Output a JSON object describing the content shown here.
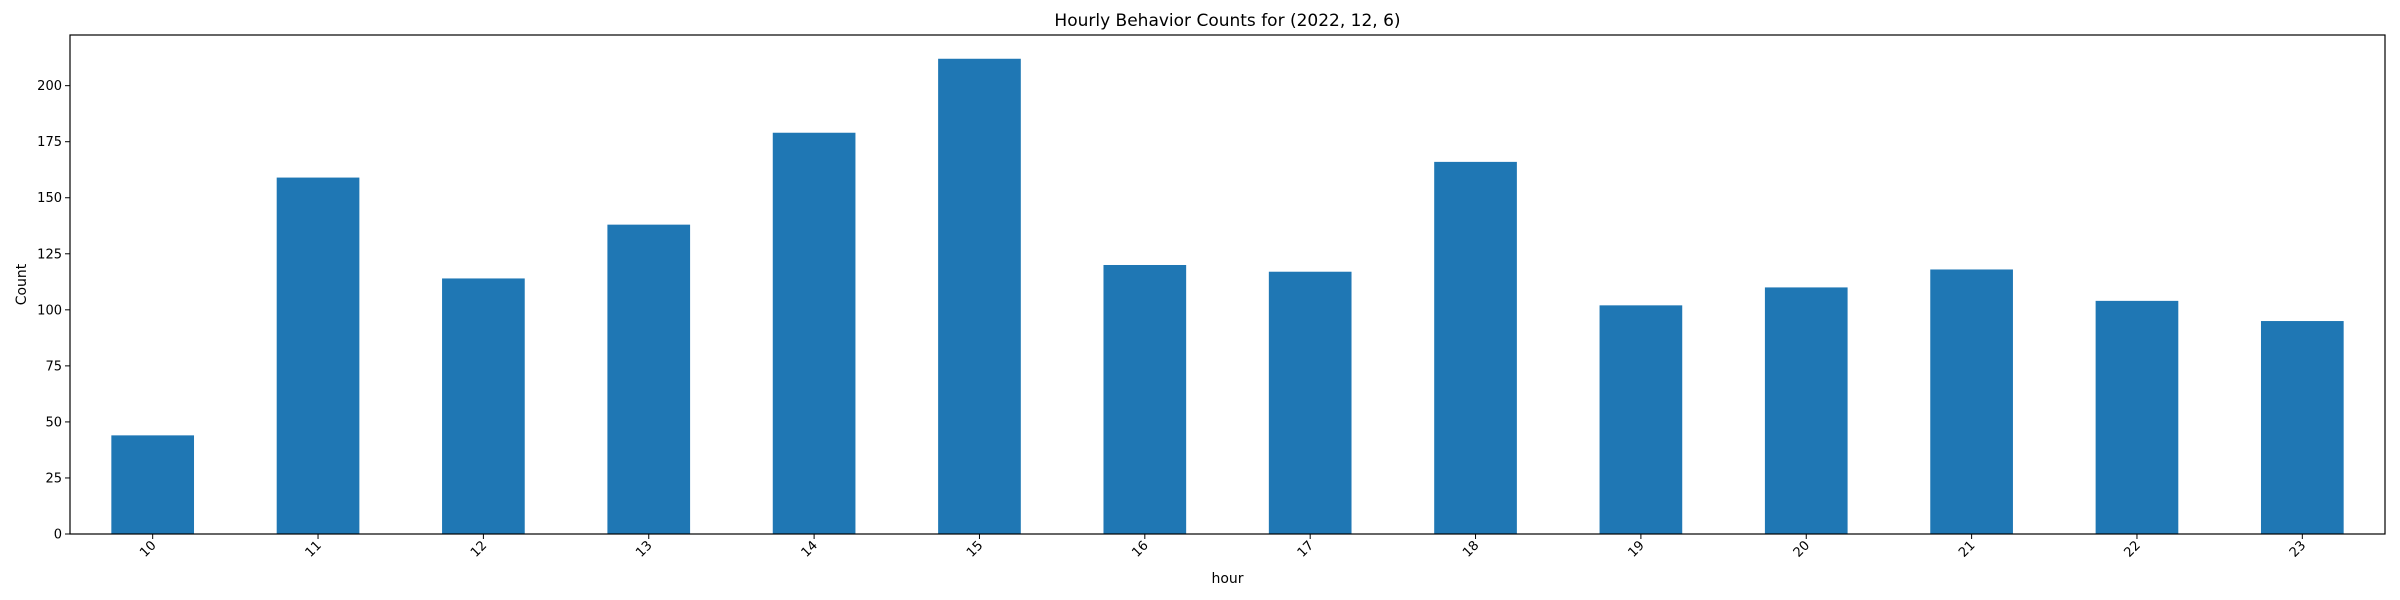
{
  "chart_data": {
    "type": "bar",
    "title": "Hourly Behavior Counts for (2022, 12, 6)",
    "xlabel": "hour",
    "ylabel": "Count",
    "categories": [
      "10",
      "11",
      "12",
      "13",
      "14",
      "15",
      "16",
      "17",
      "18",
      "19",
      "20",
      "21",
      "22",
      "23"
    ],
    "values": [
      44,
      159,
      114,
      138,
      179,
      212,
      120,
      117,
      166,
      102,
      110,
      118,
      104,
      95
    ],
    "ylim": [
      0,
      222.6
    ],
    "yticks": [
      0,
      25,
      50,
      75,
      100,
      125,
      150,
      175,
      200
    ],
    "bar_color": "#1f77b4",
    "grid": false,
    "legend": false
  }
}
